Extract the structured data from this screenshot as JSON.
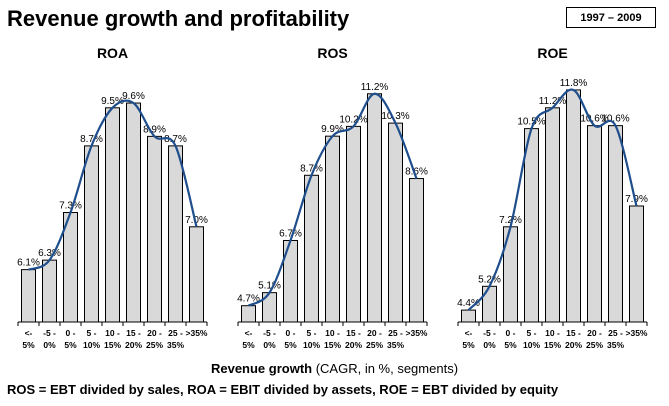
{
  "title": "Revenue growth and profitability",
  "period": "1997 – 2009",
  "xaxis_bold": "Revenue growth",
  "xaxis_rest": " (CAGR, in %, segments)",
  "footnote": "ROS = EBT divided by sales, ROA = EBIT divided by assets, ROE = EBT divided by equity",
  "colors": {
    "bar_fill": "#d9d9d9",
    "bar_stroke": "#000000",
    "trend": "#1f4e8c"
  },
  "chart_data": [
    {
      "type": "bar",
      "title": "ROA",
      "categories": [
        [
          "<-",
          "5%"
        ],
        [
          "-5 -",
          "0%"
        ],
        [
          "0 -",
          "5%"
        ],
        [
          "5 -",
          "10%"
        ],
        [
          "10 -",
          "15%"
        ],
        [
          "15 -",
          "20%"
        ],
        [
          "20 -",
          "25%"
        ],
        [
          "25 -",
          "35%"
        ],
        [
          ">35%",
          ""
        ]
      ],
      "values": [
        6.1,
        6.3,
        7.3,
        8.7,
        9.5,
        9.6,
        8.9,
        8.7,
        7.0
      ],
      "labels": [
        "6.1%",
        "6.3%",
        "7.3%",
        "8.7%",
        "9.5%",
        "9.6%",
        "8.9%",
        "8.7%",
        "7.0%"
      ],
      "ylim": [
        5,
        10
      ],
      "trendline": "polynomial"
    },
    {
      "type": "bar",
      "title": "ROS",
      "categories": [
        [
          "<-",
          "5%"
        ],
        [
          "-5 -",
          "0%"
        ],
        [
          "0 -",
          "5%"
        ],
        [
          "5 -",
          "10%"
        ],
        [
          "10 -",
          "15%"
        ],
        [
          "15 -",
          "20%"
        ],
        [
          "20 -",
          "25%"
        ],
        [
          "25 -",
          "35%"
        ],
        [
          ">35%",
          ""
        ]
      ],
      "values": [
        4.7,
        5.1,
        6.7,
        8.7,
        9.9,
        10.2,
        11.2,
        10.3,
        8.6
      ],
      "labels": [
        "4.7%",
        "5.1%",
        "6.7%",
        "8.7%",
        "9.9%",
        "10.2%",
        "11.2%",
        "10.3%",
        "8.6%"
      ],
      "ylim": [
        4.2,
        11.5
      ],
      "trendline": "polynomial"
    },
    {
      "type": "bar",
      "title": "ROE",
      "categories": [
        [
          "<-",
          "5%"
        ],
        [
          "-5 -",
          "0%"
        ],
        [
          "0 -",
          "5%"
        ],
        [
          "5 -",
          "10%"
        ],
        [
          "10 -",
          "15%"
        ],
        [
          "15 -",
          "20%"
        ],
        [
          "20 -",
          "25%"
        ],
        [
          "25 -",
          "35%"
        ],
        [
          ">35%",
          ""
        ]
      ],
      "values": [
        4.4,
        5.2,
        7.2,
        10.5,
        11.2,
        11.8,
        10.6,
        10.6,
        7.9
      ],
      "labels": [
        "4.4%",
        "5.2%",
        "7.2%",
        "10.5%",
        "11.2%",
        "11.8%",
        "10.6%",
        "10.6%",
        "7.9%"
      ],
      "ylim": [
        4.0,
        12.0
      ],
      "trendline": "polynomial"
    }
  ]
}
